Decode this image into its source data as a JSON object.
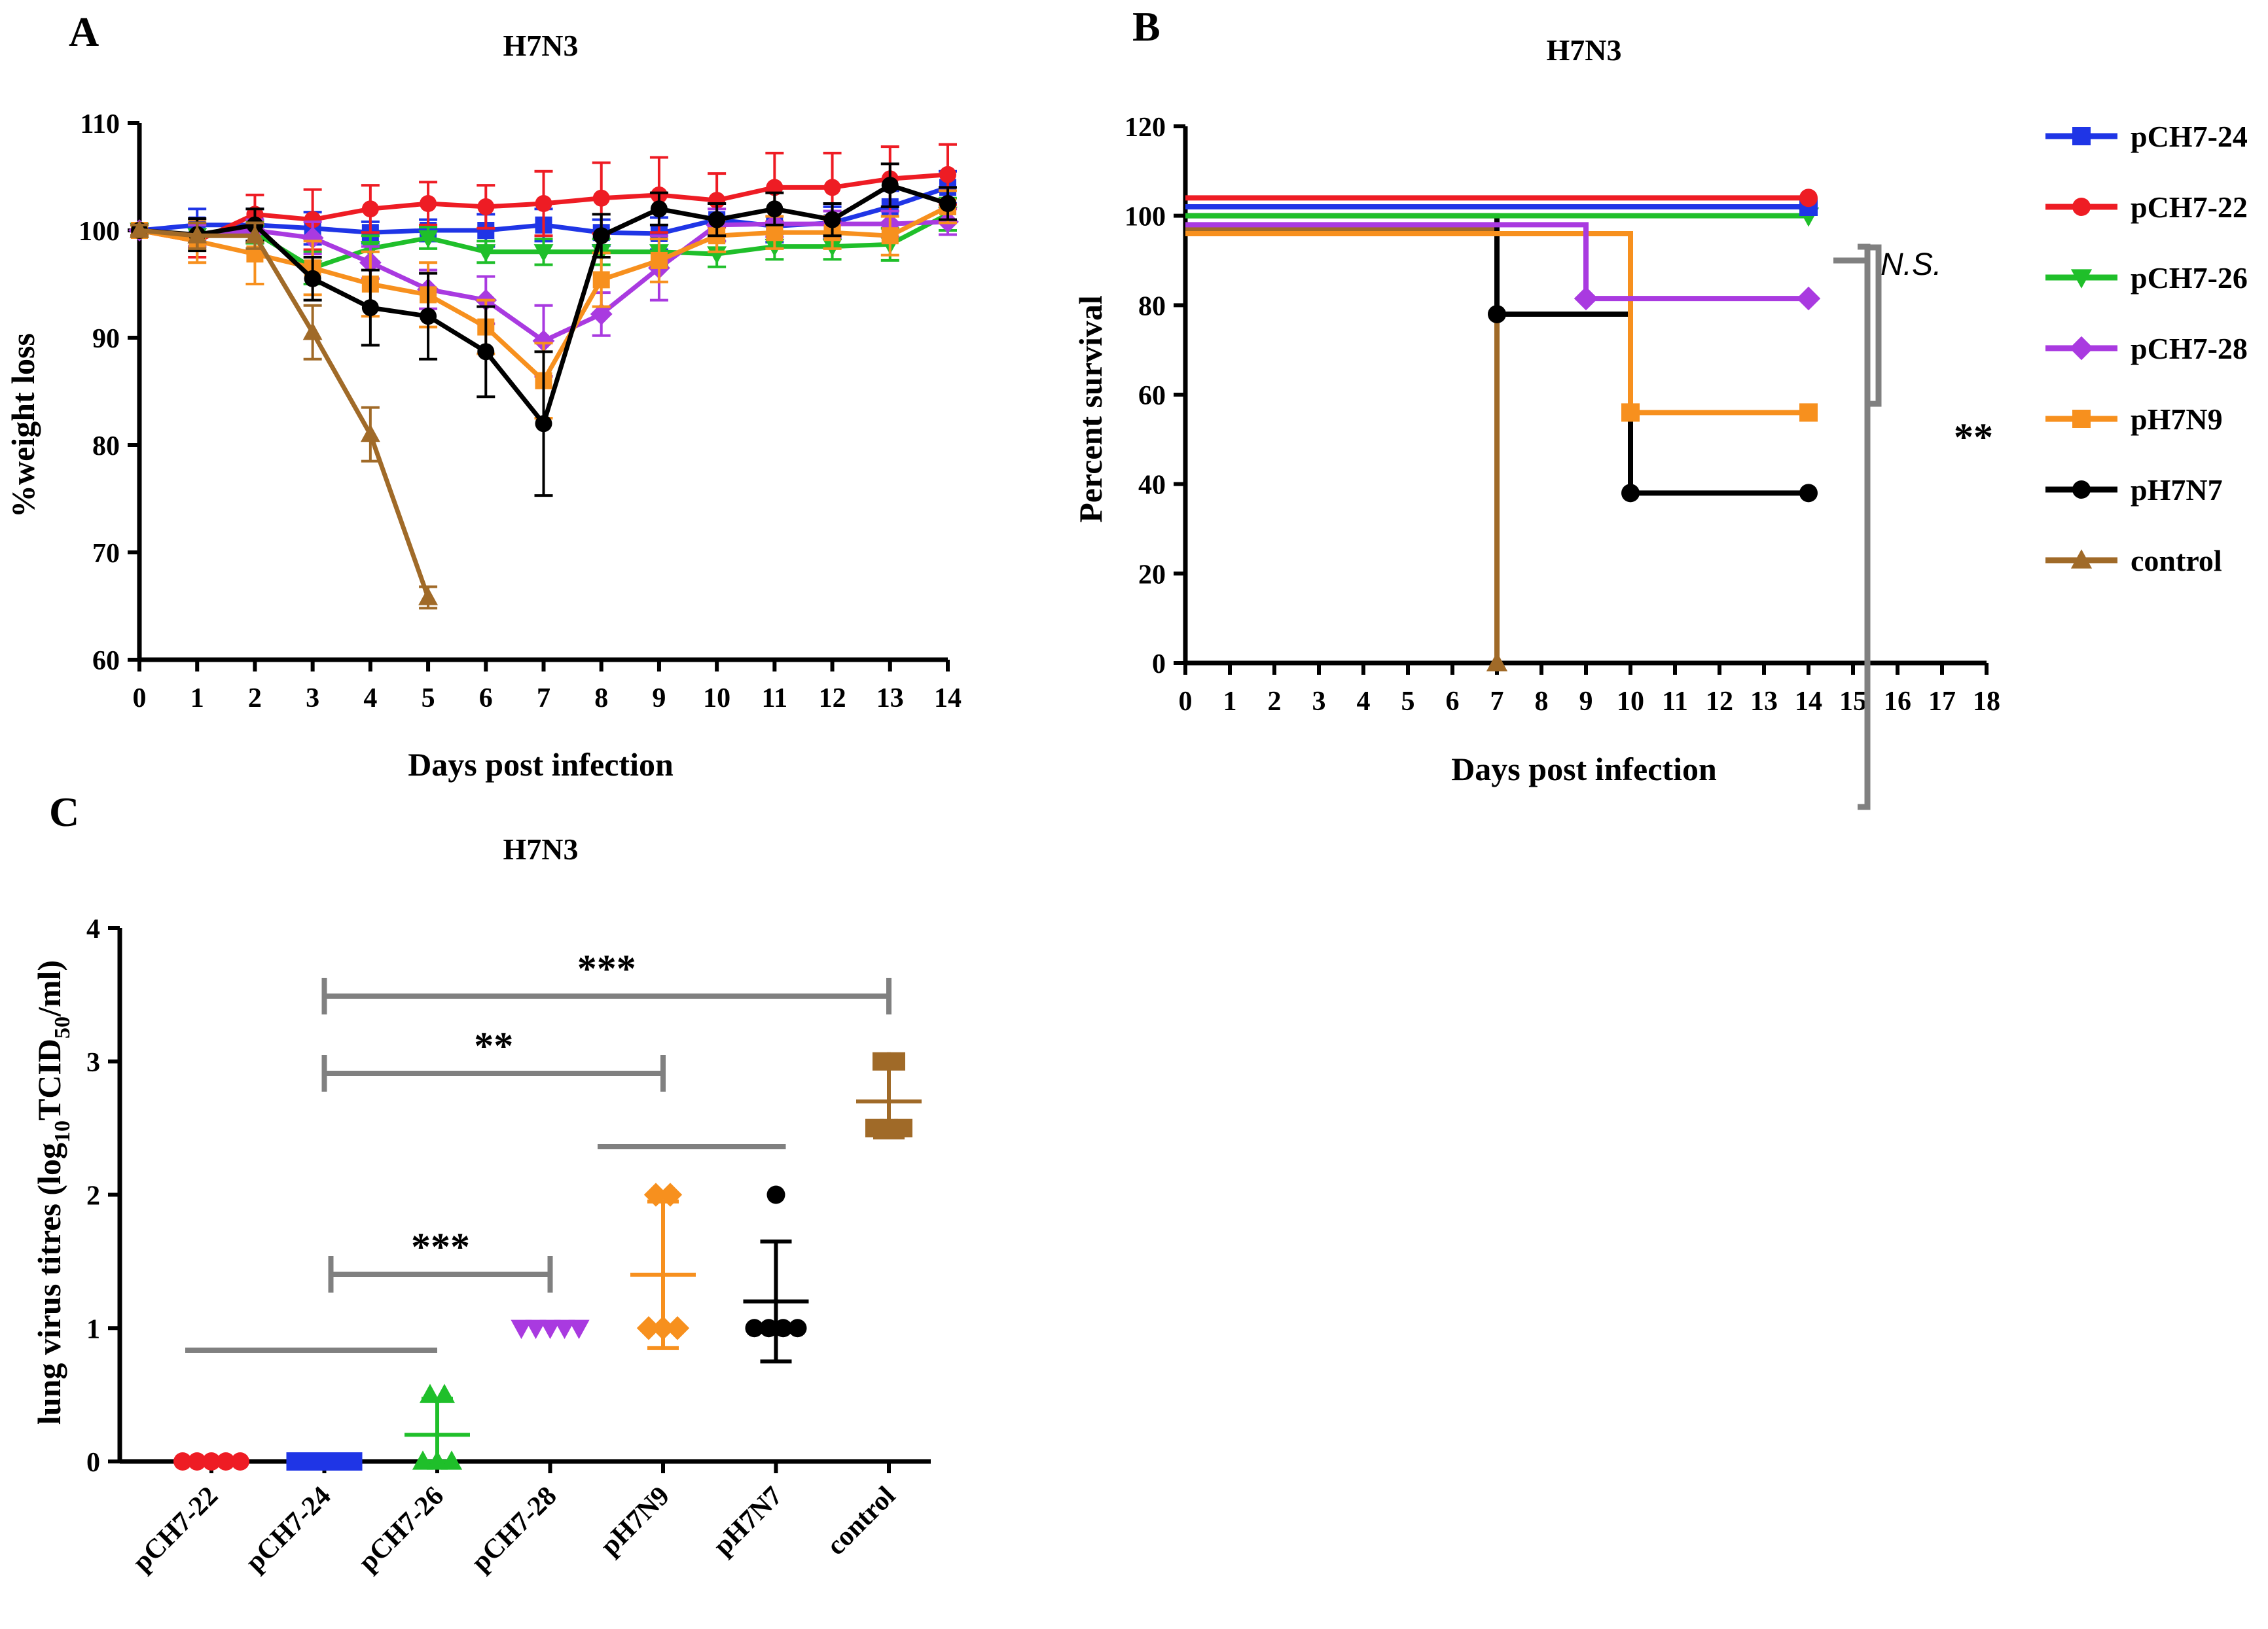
{
  "colors": {
    "pCH7-24": "#1f35e6",
    "pCH7-22": "#ee1c24",
    "pCH7-26": "#1fbf2a",
    "pCH7-28": "#a93ae0",
    "pH7N9": "#f7901e",
    "pH7N7": "#000000",
    "control": "#a06a28",
    "bracket": "#808080"
  },
  "chart_data": [
    {
      "panel": "A",
      "type": "line",
      "title": "H7N3",
      "xlabel": "Days post infection",
      "ylabel": "%weight loss",
      "xlim": [
        0,
        14
      ],
      "ylim": [
        60,
        110
      ],
      "xticks": [
        "0",
        "1",
        "2",
        "3",
        "4",
        "5",
        "6",
        "7",
        "8",
        "9",
        "10",
        "11",
        "12",
        "13",
        "14"
      ],
      "yticks": [
        "60",
        "70",
        "80",
        "90",
        "100",
        "110"
      ],
      "series": [
        {
          "name": "pCH7-24",
          "marker": "square",
          "x": [
            0,
            1,
            2,
            3,
            4,
            5,
            6,
            7,
            8,
            9,
            10,
            11,
            12,
            13,
            14
          ],
          "y": [
            100,
            100.5,
            100.5,
            100.2,
            99.8,
            100,
            100,
            100.5,
            99.8,
            99.7,
            101,
            100.4,
            100.7,
            102.2,
            104
          ],
          "err": [
            0.5,
            1.5,
            1.5,
            1.5,
            1,
            1,
            1.5,
            1.5,
            1.2,
            1.5,
            1.5,
            1.5,
            1.5,
            1.5,
            1.5
          ]
        },
        {
          "name": "pCH7-22",
          "marker": "circle",
          "x": [
            0,
            1,
            2,
            3,
            4,
            5,
            6,
            7,
            8,
            9,
            10,
            11,
            12,
            13,
            14
          ],
          "y": [
            100,
            99,
            101.5,
            101,
            102,
            102.5,
            102.2,
            102.5,
            103,
            103.3,
            102.8,
            104,
            104,
            104.8,
            105.2
          ],
          "err": [
            0.5,
            1.5,
            1.8,
            2.8,
            2.2,
            2,
            2,
            3,
            3.3,
            3.5,
            2.5,
            3.2,
            3.2,
            3,
            2.8
          ]
        },
        {
          "name": "pCH7-26",
          "marker": "tri-down",
          "x": [
            0,
            1,
            2,
            3,
            4,
            5,
            6,
            7,
            8,
            9,
            10,
            11,
            12,
            13,
            14
          ],
          "y": [
            100,
            99.5,
            99.8,
            96.5,
            98.3,
            99.3,
            98,
            98,
            98,
            98,
            97.8,
            98.5,
            98.5,
            98.7,
            101.5
          ],
          "err": [
            0.5,
            1,
            1,
            1.5,
            1.2,
            1,
            1,
            1.2,
            1.2,
            1.2,
            1.2,
            1.2,
            1.2,
            1.5,
            1.5
          ]
        },
        {
          "name": "pCH7-28",
          "marker": "diamond",
          "x": [
            0,
            1,
            2,
            3,
            4,
            5,
            6,
            7,
            8,
            9,
            10,
            11,
            12,
            13,
            14
          ],
          "y": [
            100,
            99.5,
            100,
            99.3,
            97,
            94.5,
            93.5,
            89.7,
            92.2,
            96.5,
            100.5,
            100.6,
            100.6,
            100.6,
            100.8
          ],
          "err": [
            0.5,
            1,
            1,
            1.5,
            1.5,
            1.8,
            2.2,
            3.3,
            2,
            3,
            1.5,
            1.2,
            1.2,
            1.2,
            1.2
          ]
        },
        {
          "name": "pH7N9",
          "marker": "square",
          "x": [
            0,
            1,
            2,
            3,
            4,
            5,
            6,
            7,
            8,
            9,
            10,
            11,
            12,
            13,
            14
          ],
          "y": [
            100,
            99,
            97.8,
            96.5,
            95,
            94,
            91,
            86,
            95.4,
            97.2,
            99.5,
            99.8,
            99.8,
            99.5,
            102.2
          ],
          "err": [
            0.5,
            2,
            2.8,
            2.5,
            3,
            3,
            2.5,
            3.5,
            2.5,
            2,
            1.5,
            1.5,
            1.5,
            1.8,
            1.5
          ]
        },
        {
          "name": "pH7N7",
          "marker": "circle",
          "x": [
            0,
            1,
            2,
            3,
            4,
            5,
            6,
            7,
            8,
            9,
            10,
            11,
            12,
            13,
            14
          ],
          "y": [
            100,
            99.6,
            100.5,
            95.5,
            92.8,
            92,
            88.7,
            82,
            99.5,
            102,
            101,
            102,
            101,
            104.2,
            102.5
          ],
          "err": [
            0.5,
            1.5,
            1.5,
            2,
            3.5,
            4,
            4.2,
            6.7,
            2,
            1.5,
            1.5,
            1.5,
            1.5,
            2,
            1.5
          ]
        },
        {
          "name": "control",
          "marker": "triangle",
          "x": [
            0,
            1,
            2,
            3,
            4,
            5
          ],
          "y": [
            100,
            99.5,
            99.5,
            90.5,
            81,
            65.8
          ],
          "err": [
            0.5,
            1.2,
            1.2,
            2.5,
            2.5,
            1
          ]
        }
      ]
    },
    {
      "panel": "B",
      "type": "line",
      "subtype": "survival-step",
      "title": "H7N3",
      "xlabel": "Days post infection",
      "ylabel": "Percent survival",
      "xlim": [
        0,
        18
      ],
      "ylim": [
        0,
        120
      ],
      "xticks": [
        "0",
        "1",
        "2",
        "3",
        "4",
        "5",
        "6",
        "7",
        "8",
        "9",
        "10",
        "11",
        "12",
        "13",
        "14",
        "15",
        "16",
        "17",
        "18"
      ],
      "yticks": [
        "0",
        "20",
        "40",
        "60",
        "80",
        "100",
        "120"
      ],
      "series": [
        {
          "name": "pCH7-24",
          "marker": "square",
          "steps": [
            [
              0,
              102
            ],
            [
              14,
              102
            ]
          ]
        },
        {
          "name": "pCH7-22",
          "marker": "circle",
          "steps": [
            [
              0,
              104
            ],
            [
              14,
              104
            ]
          ]
        },
        {
          "name": "pCH7-26",
          "marker": "tri-down",
          "steps": [
            [
              0,
              100
            ],
            [
              14,
              100
            ]
          ]
        },
        {
          "name": "pCH7-28",
          "marker": "diamond",
          "steps": [
            [
              0,
              98
            ],
            [
              9,
              98
            ],
            [
              9,
              81.5
            ],
            [
              14,
              81.5
            ]
          ],
          "points": [
            [
              9,
              81.5
            ],
            [
              14,
              81.5
            ]
          ]
        },
        {
          "name": "pH7N9",
          "marker": "square",
          "steps": [
            [
              0,
              96
            ],
            [
              10,
              96
            ],
            [
              10,
              56
            ],
            [
              14,
              56
            ]
          ],
          "points": [
            [
              10,
              56
            ],
            [
              14,
              56
            ]
          ]
        },
        {
          "name": "pH7N7",
          "marker": "circle",
          "steps": [
            [
              0,
              100
            ],
            [
              7,
              100
            ],
            [
              7,
              78
            ],
            [
              10,
              78
            ],
            [
              10,
              38
            ],
            [
              14,
              38
            ]
          ],
          "points": [
            [
              7,
              78
            ],
            [
              10,
              38
            ],
            [
              14,
              38
            ]
          ]
        },
        {
          "name": "control",
          "marker": "triangle",
          "steps": [
            [
              0,
              97
            ],
            [
              7,
              97
            ],
            [
              7,
              0
            ]
          ],
          "points": [
            [
              7,
              0
            ]
          ]
        }
      ],
      "legend": [
        "pCH7-24",
        "pCH7-22",
        "pCH7-26",
        "pCH7-28",
        "pH7N9",
        "pH7N7",
        "control"
      ],
      "annotations": {
        "ns": "N.S.",
        "sig": "**"
      }
    },
    {
      "panel": "C",
      "type": "scatter",
      "title": "H7N3",
      "ylabel_main": "lung virus titres (log",
      "ylabel_sub1": "10",
      "ylabel_mid": "TCID",
      "ylabel_sub2": "50",
      "ylabel_end": "/ml)",
      "ylim": [
        0,
        4
      ],
      "yticks": [
        "0",
        "1",
        "2",
        "3",
        "4"
      ],
      "categories": [
        "pCH7-22",
        "pCH7-24",
        "pCH7-26",
        "pCH7-28",
        "pH7N9",
        "pH7N7",
        "control"
      ],
      "series": [
        {
          "name": "pCH7-22",
          "marker": "circle",
          "points": [
            0,
            0,
            0,
            0,
            0
          ],
          "mean": null,
          "sd": null
        },
        {
          "name": "pCH7-24",
          "marker": "square",
          "points": [
            0,
            0,
            0,
            0,
            0
          ],
          "mean": null,
          "sd": null
        },
        {
          "name": "pCH7-26",
          "marker": "triangle",
          "points": [
            0.5,
            0.5,
            0,
            0,
            0
          ],
          "mean": 0.2,
          "sd": 0.27
        },
        {
          "name": "pCH7-28",
          "marker": "tri-down",
          "points": [
            1,
            1,
            1,
            1,
            1
          ],
          "mean": null,
          "sd": null
        },
        {
          "name": "pH7N9",
          "marker": "diamond",
          "points": [
            2,
            2,
            1,
            1,
            1
          ],
          "mean": 1.4,
          "sd": 0.55
        },
        {
          "name": "pH7N7",
          "marker": "circle",
          "points": [
            2,
            1,
            1,
            1,
            1
          ],
          "mean": 1.2,
          "sd": 0.45
        },
        {
          "name": "control",
          "marker": "square",
          "points": [
            3,
            3,
            2.5,
            2.5,
            2.5
          ],
          "mean": 2.7,
          "sd": 0.27
        }
      ],
      "brackets": [
        {
          "from": "pCH7-24",
          "to": "control",
          "label": "***"
        },
        {
          "from": "pCH7-24",
          "to": "pH7N9",
          "label": "**"
        },
        {
          "from": "pH7N9",
          "to": "pH7N7",
          "label": ""
        },
        {
          "from": "pCH7-24",
          "to": "pCH7-28",
          "label": "***"
        },
        {
          "from": "pCH7-22",
          "to": "pCH7-26",
          "label": ""
        }
      ]
    }
  ],
  "panels": {
    "A": {
      "letter": "A",
      "title": "H7N3",
      "xlabel": "Days post infection",
      "ylabel": "%weight loss"
    },
    "B": {
      "letter": "B",
      "title": "H7N3",
      "xlabel": "Days post infection",
      "ylabel": "Percent survival",
      "ns_label": "N.S.",
      "sig_label": "**"
    },
    "C": {
      "letter": "C",
      "title": "H7N3"
    }
  },
  "legend": {
    "items": [
      {
        "name": "pCH7-24",
        "marker": "square"
      },
      {
        "name": "pCH7-22",
        "marker": "circle"
      },
      {
        "name": "pCH7-26",
        "marker": "tri-down"
      },
      {
        "name": "pCH7-28",
        "marker": "diamond"
      },
      {
        "name": "pH7N9",
        "marker": "square"
      },
      {
        "name": "pH7N7",
        "marker": "circle"
      },
      {
        "name": "control",
        "marker": "triangle"
      }
    ]
  }
}
